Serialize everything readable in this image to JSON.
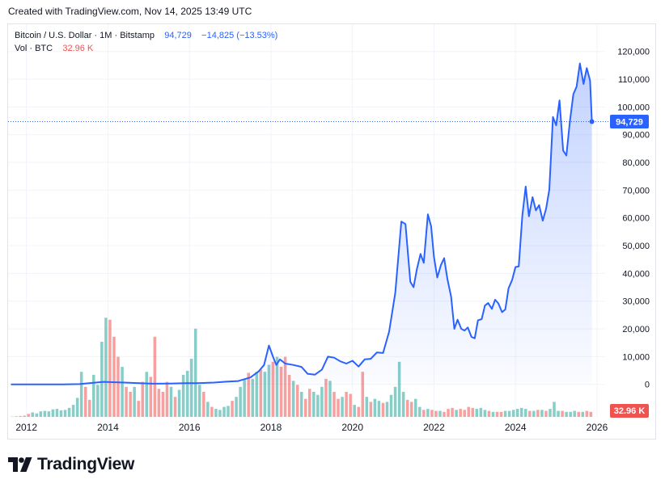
{
  "created_caption": "Created with TradingView.com, Nov 14, 2025 13:49 UTC",
  "legend": {
    "symbol": "Bitcoin / U.S. Dollar · 1M · Bitstamp",
    "last_price": "94,729",
    "change": "−14,825 (−13.53%)",
    "volume_label": "Vol · BTC",
    "volume_value": "32.96 K"
  },
  "brand": {
    "name": "TradingView",
    "logo_icon": "tradingview-logo-icon"
  },
  "colors": {
    "price_line": "#2962ff",
    "area_fill": "#2962ff",
    "volume_up": "#26a69a",
    "volume_down": "#ef5350",
    "grid": "#f0f3fa"
  },
  "chart_data": {
    "type": "area",
    "title": "Bitcoin / U.S. Dollar · 1M · Bitstamp",
    "y_axis": {
      "side": "right",
      "ticks": [
        "120,000",
        "110,000",
        "100,000",
        "90,000",
        "80,000",
        "70,000",
        "60,000",
        "50,000",
        "40,000",
        "30,000",
        "20,000",
        "10,000",
        "0"
      ],
      "range": [
        -3000,
        124000
      ]
    },
    "x_axis": {
      "ticks": [
        "2012",
        "2014",
        "2016",
        "2018",
        "2020",
        "2022",
        "2024",
        "2026"
      ],
      "range": [
        2011.55,
        2026.2
      ]
    },
    "price_label": "94,729",
    "price_value": 94729,
    "volume_label": "32.96 K",
    "grid": true,
    "series": [
      {
        "name": "Bitcoin / U.S. Dollar",
        "points": [
          [
            2011.62,
            11
          ],
          [
            2012.0,
            5
          ],
          [
            2012.5,
            7
          ],
          [
            2012.9,
            13
          ],
          [
            2013.3,
            100
          ],
          [
            2013.9,
            900
          ],
          [
            2014.1,
            800
          ],
          [
            2014.4,
            630
          ],
          [
            2014.9,
            350
          ],
          [
            2015.1,
            230
          ],
          [
            2015.5,
            260
          ],
          [
            2015.9,
            400
          ],
          [
            2016.2,
            430
          ],
          [
            2016.6,
            650
          ],
          [
            2016.9,
            970
          ],
          [
            2017.2,
            1200
          ],
          [
            2017.5,
            2500
          ],
          [
            2017.7,
            4700
          ],
          [
            2017.83,
            7000
          ],
          [
            2017.95,
            14000
          ],
          [
            2018.05,
            10000
          ],
          [
            2018.13,
            7000
          ],
          [
            2018.22,
            9000
          ],
          [
            2018.35,
            7500
          ],
          [
            2018.55,
            7000
          ],
          [
            2018.75,
            6300
          ],
          [
            2018.9,
            3800
          ],
          [
            2019.08,
            3500
          ],
          [
            2019.25,
            5300
          ],
          [
            2019.4,
            10000
          ],
          [
            2019.55,
            9600
          ],
          [
            2019.7,
            8300
          ],
          [
            2019.85,
            7500
          ],
          [
            2020.0,
            8500
          ],
          [
            2020.15,
            6400
          ],
          [
            2020.3,
            9000
          ],
          [
            2020.45,
            9200
          ],
          [
            2020.6,
            11500
          ],
          [
            2020.75,
            11300
          ],
          [
            2020.9,
            19000
          ],
          [
            2021.05,
            33000
          ],
          [
            2021.12,
            45000
          ],
          [
            2021.2,
            58700
          ],
          [
            2021.3,
            57800
          ],
          [
            2021.42,
            37000
          ],
          [
            2021.5,
            35000
          ],
          [
            2021.58,
            41500
          ],
          [
            2021.67,
            47000
          ],
          [
            2021.75,
            43800
          ],
          [
            2021.85,
            61300
          ],
          [
            2021.93,
            57000
          ],
          [
            2022.0,
            46000
          ],
          [
            2022.08,
            38500
          ],
          [
            2022.17,
            43000
          ],
          [
            2022.25,
            45500
          ],
          [
            2022.33,
            38000
          ],
          [
            2022.42,
            31700
          ],
          [
            2022.5,
            20000
          ],
          [
            2022.58,
            23300
          ],
          [
            2022.67,
            20000
          ],
          [
            2022.75,
            19400
          ],
          [
            2022.83,
            20500
          ],
          [
            2022.92,
            17100
          ],
          [
            2023.0,
            16600
          ],
          [
            2023.08,
            23100
          ],
          [
            2023.17,
            23500
          ],
          [
            2023.25,
            28400
          ],
          [
            2023.33,
            29300
          ],
          [
            2023.42,
            27200
          ],
          [
            2023.5,
            30500
          ],
          [
            2023.58,
            29200
          ],
          [
            2023.67,
            26000
          ],
          [
            2023.75,
            27000
          ],
          [
            2023.83,
            34600
          ],
          [
            2023.92,
            37700
          ],
          [
            2024.0,
            42300
          ],
          [
            2024.08,
            42500
          ],
          [
            2024.17,
            61000
          ],
          [
            2024.25,
            71300
          ],
          [
            2024.33,
            60600
          ],
          [
            2024.42,
            67500
          ],
          [
            2024.5,
            62700
          ],
          [
            2024.58,
            64600
          ],
          [
            2024.67,
            59000
          ],
          [
            2024.75,
            63300
          ],
          [
            2024.83,
            70200
          ],
          [
            2024.92,
            96400
          ],
          [
            2025.0,
            93400
          ],
          [
            2025.08,
            102400
          ],
          [
            2025.17,
            84300
          ],
          [
            2025.25,
            82500
          ],
          [
            2025.33,
            94200
          ],
          [
            2025.42,
            104600
          ],
          [
            2025.5,
            107300
          ],
          [
            2025.58,
            115700
          ],
          [
            2025.67,
            108300
          ],
          [
            2025.75,
            114000
          ],
          [
            2025.83,
            109500
          ],
          [
            2025.875,
            94729
          ]
        ]
      },
      {
        "name": "Vol · BTC",
        "type": "bar",
        "scale": "relative",
        "bars": [
          [
            2011.65,
            0.003,
            "d"
          ],
          [
            2011.75,
            0.006,
            "d"
          ],
          [
            2011.85,
            0.009,
            "d"
          ],
          [
            2011.95,
            0.012,
            "d"
          ],
          [
            2012.05,
            0.03,
            "d"
          ],
          [
            2012.15,
            0.045,
            "u"
          ],
          [
            2012.25,
            0.035,
            "u"
          ],
          [
            2012.35,
            0.055,
            "u"
          ],
          [
            2012.45,
            0.06,
            "u"
          ],
          [
            2012.55,
            0.055,
            "u"
          ],
          [
            2012.65,
            0.075,
            "u"
          ],
          [
            2012.75,
            0.08,
            "u"
          ],
          [
            2012.85,
            0.065,
            "u"
          ],
          [
            2012.95,
            0.07,
            "u"
          ],
          [
            2013.05,
            0.09,
            "u"
          ],
          [
            2013.15,
            0.12,
            "u"
          ],
          [
            2013.25,
            0.19,
            "u"
          ],
          [
            2013.35,
            0.45,
            "u"
          ],
          [
            2013.45,
            0.3,
            "d"
          ],
          [
            2013.55,
            0.17,
            "d"
          ],
          [
            2013.65,
            0.42,
            "u"
          ],
          [
            2013.75,
            0.32,
            "u"
          ],
          [
            2013.85,
            0.75,
            "u"
          ],
          [
            2013.95,
            0.99,
            "u"
          ],
          [
            2014.05,
            0.97,
            "d"
          ],
          [
            2014.15,
            0.8,
            "d"
          ],
          [
            2014.25,
            0.6,
            "d"
          ],
          [
            2014.35,
            0.5,
            "u"
          ],
          [
            2014.45,
            0.3,
            "d"
          ],
          [
            2014.55,
            0.25,
            "d"
          ],
          [
            2014.65,
            0.3,
            "u"
          ],
          [
            2014.75,
            0.16,
            "d"
          ],
          [
            2014.85,
            0.35,
            "d"
          ],
          [
            2014.95,
            0.45,
            "u"
          ],
          [
            2015.05,
            0.4,
            "d"
          ],
          [
            2015.15,
            0.8,
            "d"
          ],
          [
            2015.25,
            0.28,
            "d"
          ],
          [
            2015.35,
            0.25,
            "d"
          ],
          [
            2015.45,
            0.35,
            "d"
          ],
          [
            2015.55,
            0.3,
            "u"
          ],
          [
            2015.65,
            0.2,
            "d"
          ],
          [
            2015.75,
            0.27,
            "u"
          ],
          [
            2015.85,
            0.42,
            "u"
          ],
          [
            2015.95,
            0.46,
            "u"
          ],
          [
            2016.05,
            0.58,
            "u"
          ],
          [
            2016.15,
            0.88,
            "u"
          ],
          [
            2016.25,
            0.32,
            "u"
          ],
          [
            2016.35,
            0.25,
            "d"
          ],
          [
            2016.45,
            0.15,
            "u"
          ],
          [
            2016.55,
            0.1,
            "d"
          ],
          [
            2016.65,
            0.08,
            "u"
          ],
          [
            2016.75,
            0.07,
            "u"
          ],
          [
            2016.85,
            0.1,
            "u"
          ],
          [
            2016.95,
            0.11,
            "u"
          ],
          [
            2017.05,
            0.16,
            "d"
          ],
          [
            2017.15,
            0.2,
            "u"
          ],
          [
            2017.25,
            0.3,
            "u"
          ],
          [
            2017.35,
            0.38,
            "u"
          ],
          [
            2017.45,
            0.44,
            "d"
          ],
          [
            2017.55,
            0.38,
            "u"
          ],
          [
            2017.65,
            0.45,
            "u"
          ],
          [
            2017.75,
            0.47,
            "d"
          ],
          [
            2017.85,
            0.45,
            "u"
          ],
          [
            2017.95,
            0.52,
            "u"
          ],
          [
            2018.05,
            0.55,
            "d"
          ],
          [
            2018.15,
            0.6,
            "u"
          ],
          [
            2018.25,
            0.5,
            "d"
          ],
          [
            2018.35,
            0.6,
            "d"
          ],
          [
            2018.45,
            0.42,
            "d"
          ],
          [
            2018.55,
            0.36,
            "u"
          ],
          [
            2018.65,
            0.32,
            "d"
          ],
          [
            2018.75,
            0.25,
            "u"
          ],
          [
            2018.85,
            0.18,
            "d"
          ],
          [
            2018.95,
            0.28,
            "d"
          ],
          [
            2019.05,
            0.25,
            "u"
          ],
          [
            2019.15,
            0.22,
            "u"
          ],
          [
            2019.25,
            0.3,
            "u"
          ],
          [
            2019.35,
            0.38,
            "d"
          ],
          [
            2019.45,
            0.36,
            "u"
          ],
          [
            2019.55,
            0.25,
            "d"
          ],
          [
            2019.65,
            0.18,
            "d"
          ],
          [
            2019.75,
            0.2,
            "u"
          ],
          [
            2019.85,
            0.25,
            "d"
          ],
          [
            2019.95,
            0.23,
            "d"
          ],
          [
            2020.05,
            0.12,
            "u"
          ],
          [
            2020.15,
            0.1,
            "d"
          ],
          [
            2020.25,
            0.45,
            "d"
          ],
          [
            2020.35,
            0.2,
            "u"
          ],
          [
            2020.45,
            0.15,
            "d"
          ],
          [
            2020.55,
            0.18,
            "u"
          ],
          [
            2020.65,
            0.16,
            "u"
          ],
          [
            2020.75,
            0.14,
            "d"
          ],
          [
            2020.85,
            0.15,
            "u"
          ],
          [
            2020.95,
            0.22,
            "u"
          ],
          [
            2021.05,
            0.3,
            "u"
          ],
          [
            2021.15,
            0.55,
            "u"
          ],
          [
            2021.25,
            0.25,
            "u"
          ],
          [
            2021.35,
            0.17,
            "d"
          ],
          [
            2021.45,
            0.15,
            "d"
          ],
          [
            2021.55,
            0.18,
            "u"
          ],
          [
            2021.65,
            0.1,
            "u"
          ],
          [
            2021.75,
            0.07,
            "d"
          ],
          [
            2021.85,
            0.08,
            "u"
          ],
          [
            2021.95,
            0.07,
            "d"
          ],
          [
            2022.05,
            0.06,
            "d"
          ],
          [
            2022.15,
            0.06,
            "u"
          ],
          [
            2022.25,
            0.05,
            "d"
          ],
          [
            2022.35,
            0.08,
            "d"
          ],
          [
            2022.45,
            0.09,
            "d"
          ],
          [
            2022.55,
            0.07,
            "u"
          ],
          [
            2022.65,
            0.08,
            "d"
          ],
          [
            2022.75,
            0.07,
            "d"
          ],
          [
            2022.85,
            0.1,
            "d"
          ],
          [
            2022.95,
            0.09,
            "d"
          ],
          [
            2023.05,
            0.08,
            "u"
          ],
          [
            2023.15,
            0.09,
            "u"
          ],
          [
            2023.25,
            0.07,
            "u"
          ],
          [
            2023.35,
            0.06,
            "d"
          ],
          [
            2023.45,
            0.05,
            "u"
          ],
          [
            2023.55,
            0.05,
            "d"
          ],
          [
            2023.65,
            0.05,
            "d"
          ],
          [
            2023.75,
            0.06,
            "u"
          ],
          [
            2023.85,
            0.06,
            "u"
          ],
          [
            2023.95,
            0.07,
            "u"
          ],
          [
            2024.05,
            0.08,
            "u"
          ],
          [
            2024.15,
            0.09,
            "u"
          ],
          [
            2024.25,
            0.08,
            "u"
          ],
          [
            2024.35,
            0.06,
            "d"
          ],
          [
            2024.45,
            0.06,
            "u"
          ],
          [
            2024.55,
            0.07,
            "d"
          ],
          [
            2024.65,
            0.07,
            "u"
          ],
          [
            2024.75,
            0.06,
            "d"
          ],
          [
            2024.85,
            0.08,
            "u"
          ],
          [
            2024.95,
            0.15,
            "u"
          ],
          [
            2025.05,
            0.06,
            "u"
          ],
          [
            2025.15,
            0.06,
            "d"
          ],
          [
            2025.25,
            0.05,
            "u"
          ],
          [
            2025.35,
            0.05,
            "u"
          ],
          [
            2025.45,
            0.06,
            "u"
          ],
          [
            2025.55,
            0.05,
            "d"
          ],
          [
            2025.65,
            0.05,
            "u"
          ],
          [
            2025.75,
            0.06,
            "d"
          ],
          [
            2025.85,
            0.05,
            "d"
          ]
        ]
      }
    ]
  }
}
